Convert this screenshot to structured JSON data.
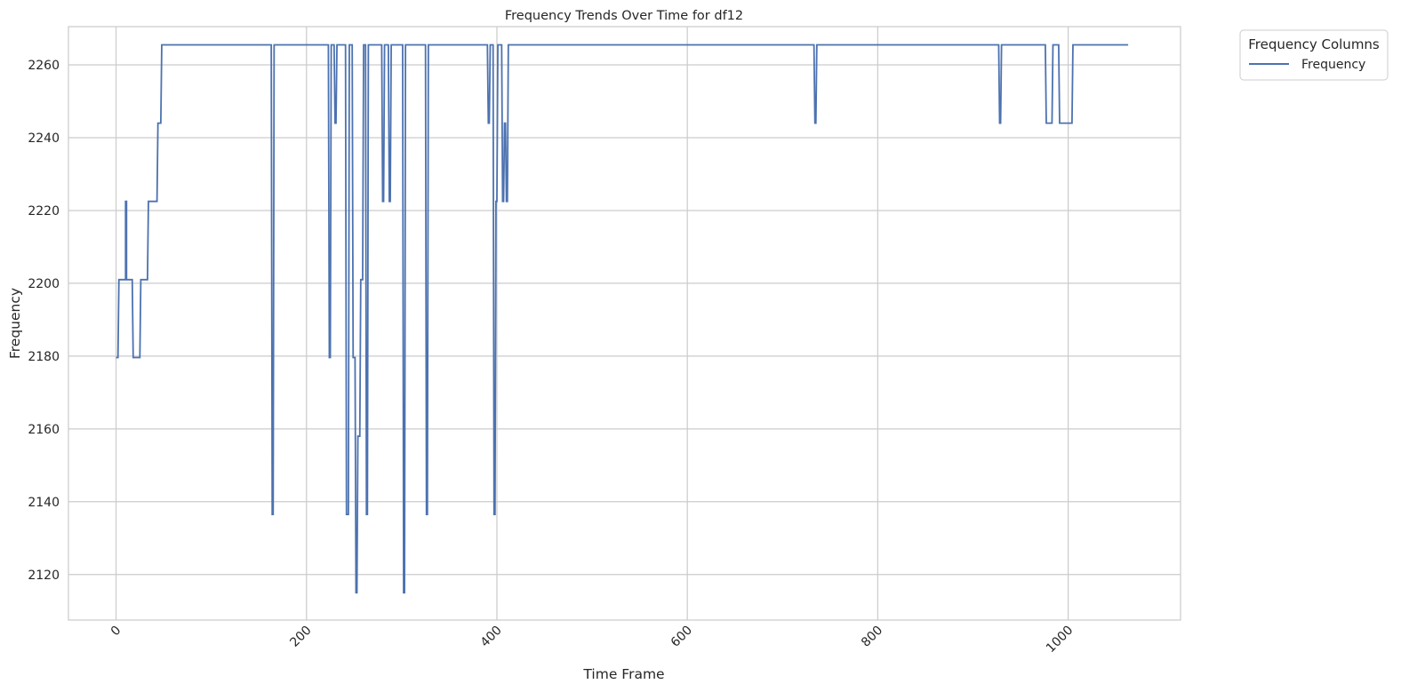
{
  "chart_data": {
    "type": "line",
    "title": "Frequency Trends Over Time for df12",
    "xlabel": "Time Frame",
    "ylabel": "Frequency",
    "xlim": [
      -50,
      1118
    ],
    "ylim": [
      2107.5,
      2270.5
    ],
    "x_ticks": [
      0,
      200,
      400,
      600,
      800,
      1000
    ],
    "x_tick_labels": [
      "0",
      "200",
      "400",
      "600",
      "800",
      "1000"
    ],
    "y_ticks": [
      2120,
      2140,
      2160,
      2180,
      2200,
      2220,
      2240,
      2260
    ],
    "y_tick_labels": [
      "2120",
      "2140",
      "2160",
      "2180",
      "2200",
      "2220",
      "2240",
      "2260"
    ],
    "grid": true,
    "legend": {
      "title": "Frequency Columns",
      "placement": "outside-top-right",
      "entries": [
        "Frequency"
      ]
    },
    "colors": {
      "series": "#4c72b0",
      "grid": "#cccccc",
      "frame": "#cccccc"
    },
    "series": [
      {
        "name": "Frequency",
        "x": [
          0,
          2,
          3,
          10,
          10,
          11,
          11,
          17,
          18,
          25,
          26,
          33,
          34,
          43,
          44,
          47,
          48,
          163,
          164,
          165,
          166,
          223,
          224,
          225,
          226,
          229,
          230,
          231,
          232,
          241,
          242,
          244,
          245,
          248,
          249,
          251,
          252,
          253,
          254,
          256,
          257,
          259,
          260,
          262,
          263,
          264,
          265,
          279,
          280,
          281,
          282,
          286,
          287,
          288,
          289,
          301,
          302,
          303,
          304,
          325,
          326,
          327,
          328,
          390,
          391,
          392,
          393,
          396,
          397,
          398,
          399,
          400,
          401,
          405,
          406,
          407,
          408,
          409,
          410,
          411,
          412,
          733,
          734,
          735,
          736,
          927,
          928,
          929,
          930,
          976,
          977,
          983,
          984,
          990,
          991,
          1004,
          1005,
          1063
        ],
        "y": [
          2179.6,
          2179.6,
          2201,
          2201,
          2222.5,
          2222.5,
          2201,
          2201,
          2179.6,
          2179.6,
          2201,
          2201,
          2222.5,
          2222.5,
          2244,
          2244,
          2265.5,
          2265.5,
          2136.5,
          2136.5,
          2265.5,
          2265.5,
          2179.6,
          2179.6,
          2265.5,
          2265.5,
          2244,
          2244,
          2265.5,
          2265.5,
          2136.5,
          2136.5,
          2265.5,
          2265.5,
          2179.6,
          2179.6,
          2115,
          2115,
          2158,
          2158,
          2201,
          2201,
          2265.5,
          2265.5,
          2136.5,
          2136.5,
          2265.5,
          2265.5,
          2222.5,
          2222.5,
          2265.5,
          2265.5,
          2222.5,
          2222.5,
          2265.5,
          2265.5,
          2115,
          2115,
          2265.5,
          2265.5,
          2136.5,
          2136.5,
          2265.5,
          2265.5,
          2244,
          2244,
          2265.5,
          2265.5,
          2136.5,
          2136.5,
          2222.5,
          2222.5,
          2265.5,
          2265.5,
          2222.5,
          2222.5,
          2244,
          2244,
          2222.5,
          2222.5,
          2265.5,
          2265.5,
          2244,
          2244,
          2265.5,
          2265.5,
          2244,
          2244,
          2265.5,
          2265.5,
          2244,
          2244,
          2265.5,
          2265.5,
          2244,
          2244,
          2265.5,
          2265.5
        ]
      }
    ]
  }
}
